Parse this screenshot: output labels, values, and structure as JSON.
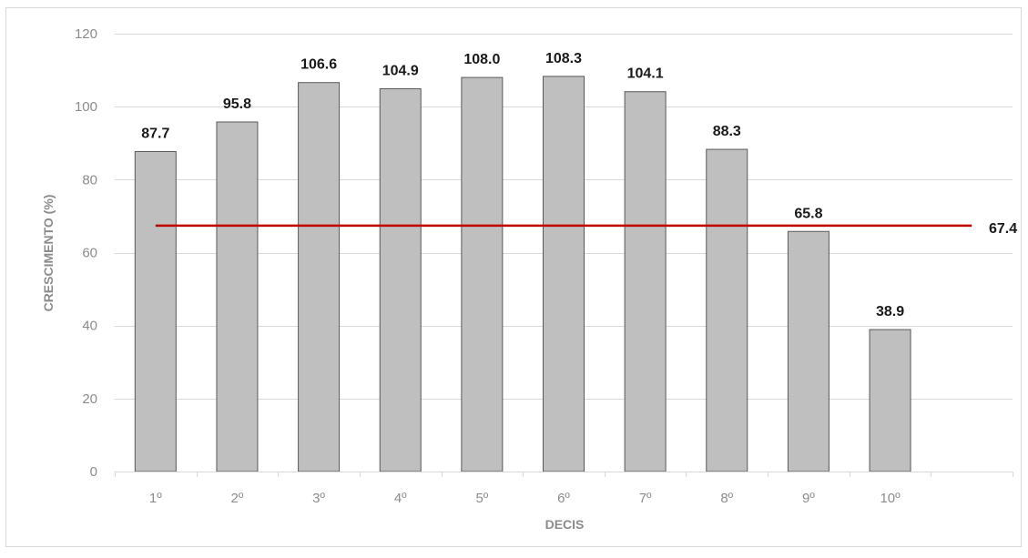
{
  "chart_data": {
    "type": "bar",
    "categories": [
      "1º",
      "2º",
      "3º",
      "4º",
      "5º",
      "6º",
      "7º",
      "8º",
      "9º",
      "10º"
    ],
    "values": [
      87.7,
      95.8,
      106.6,
      104.9,
      108.0,
      108.3,
      104.1,
      88.3,
      65.8,
      38.9
    ],
    "value_labels": [
      "87.7",
      "95.8",
      "106.6",
      "104.9",
      "108.0",
      "108.3",
      "104.1",
      "88.3",
      "65.8",
      "38.9"
    ],
    "reference_line": {
      "value": 67.4,
      "label": "67.4",
      "color": "#c00000"
    },
    "xlabel": "DECIS",
    "ylabel": "CRESCIMENTO (%)",
    "ylim": [
      0,
      120
    ],
    "yticks": [
      "0",
      "20",
      "40",
      "60",
      "80",
      "100",
      "120"
    ],
    "grid": true,
    "bar_color": "#bfbfbf",
    "bar_edge_color": "#595959",
    "grid_color": "#d9d9d9"
  }
}
